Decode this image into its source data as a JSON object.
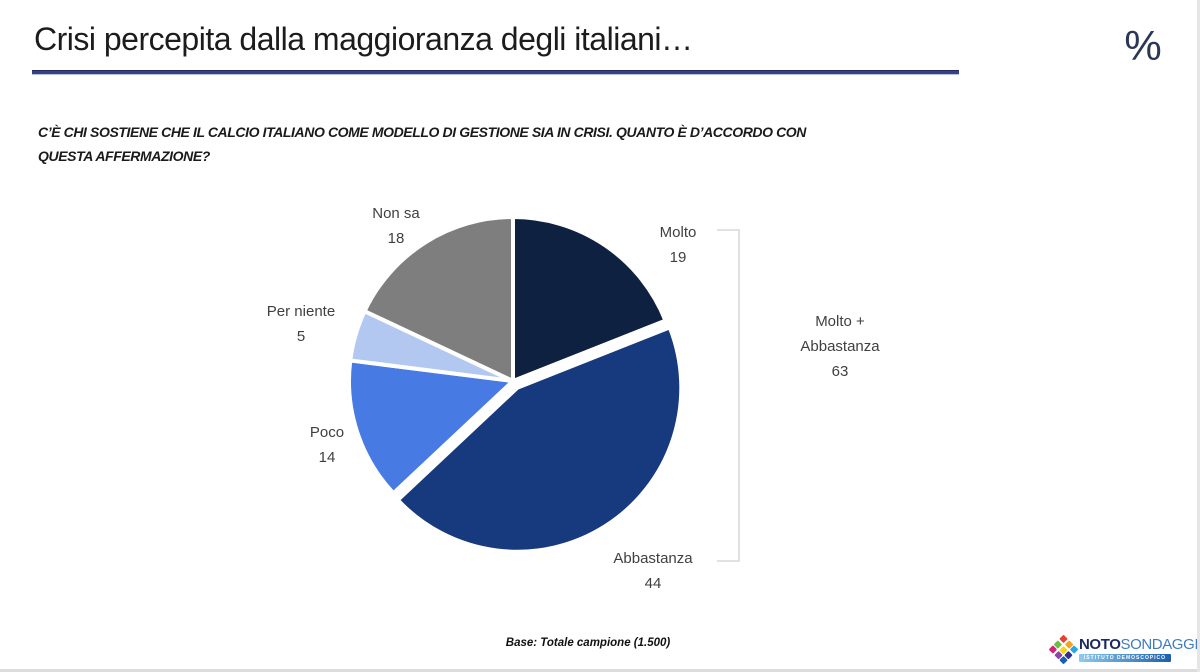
{
  "header": {
    "title": "Crisi percepita dalla maggioranza degli italiani…",
    "percent_symbol": "%"
  },
  "question": {
    "line1": "C’È CHI SOSTIENE CHE IL CALCIO ITALIANO COME MODELLO DI GESTIONE SIA IN CRISI. QUANTO È D’ACCORDO CON",
    "line2": "QUESTA AFFERMAZIONE?"
  },
  "chart_data": {
    "type": "pie",
    "start_angle_deg": 0,
    "direction": "clockwise",
    "units": "percent",
    "slices": [
      {
        "label": "Molto",
        "value": 19,
        "color": "#0f2140",
        "exploded": false
      },
      {
        "label": "Abbastanza",
        "value": 44,
        "color": "#17397e",
        "exploded": true
      },
      {
        "label": "Poco",
        "value": 14,
        "color": "#477be3",
        "exploded": false
      },
      {
        "label": "Per niente",
        "value": 5,
        "color": "#b3c8f0",
        "exploded": false
      },
      {
        "label": "Non sa",
        "value": 18,
        "color": "#7e7e7e",
        "exploded": false
      }
    ],
    "annotation": {
      "line1": "Molto +",
      "line2": "Abbastanza",
      "value": 63,
      "bracket_color": "#d9d9d9"
    },
    "separator_color": "#ffffff"
  },
  "footer": {
    "base_note": "Base: Totale campione (1.500)"
  },
  "logo": {
    "name_bold": "NOTO",
    "name_light": "SONDAGGI",
    "tagline": "ISTITUTO DEMOSCOPICO",
    "mosaic_colors": [
      "#e8412c",
      "#f5a21d",
      "#29a8df",
      "#6cbe45",
      "#f7d417",
      "#2e3192",
      "#d91f78",
      "#8e44ad",
      "#1b5faf"
    ]
  }
}
